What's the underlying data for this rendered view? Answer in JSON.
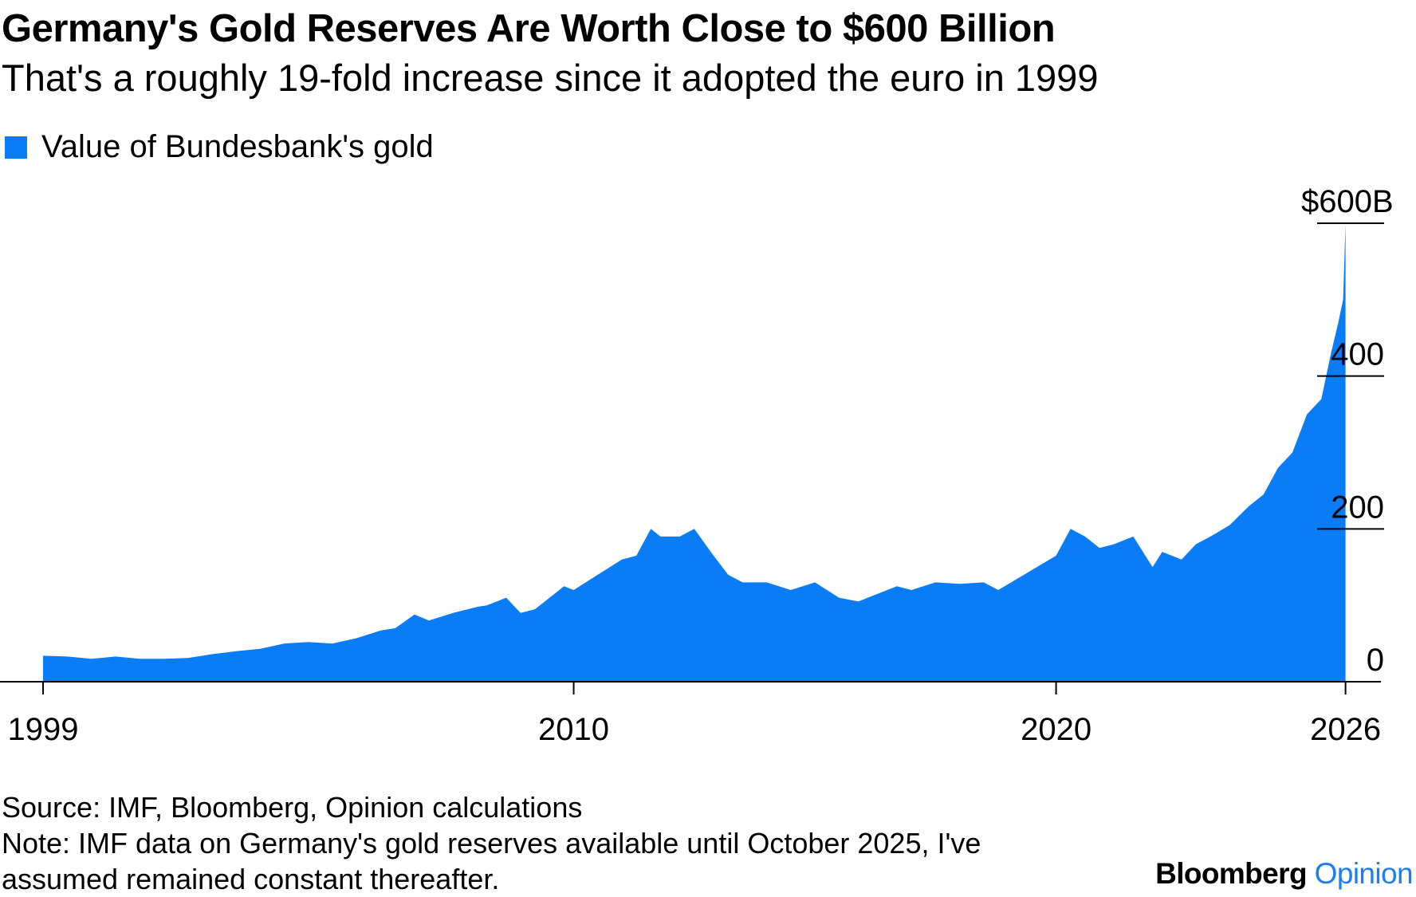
{
  "title": "Germany's Gold Reserves Are Worth Close to $600 Billion",
  "subtitle": "That's a roughly 19-fold increase since it adopted the euro in 1999",
  "legend_label": "Value of Bundesbank's gold",
  "footer": {
    "source": "Source: IMF, Bloomberg, Opinion calculations",
    "note_line1": "Note: IMF data on Germany's gold reserves available until October 2025, I've",
    "note_line2": "assumed remained constant thereafter."
  },
  "brand": {
    "name": "Bloomberg",
    "section": "Opinion"
  },
  "colors": {
    "area": "#0a7cf6",
    "axis": "#000000"
  },
  "chart_data": {
    "type": "area",
    "title": "Germany's Gold Reserves Are Worth Close to $600 Billion",
    "series_name": "Value of Bundesbank's gold",
    "ylabel": "$ billions",
    "ylim": [
      0,
      600
    ],
    "xlim": [
      1999.0,
      2026.8
    ],
    "y_ticks": [
      {
        "value": 600,
        "label": "$600B"
      },
      {
        "value": 400,
        "label": "400"
      },
      {
        "value": 200,
        "label": "200"
      },
      {
        "value": 0,
        "label": "0"
      }
    ],
    "x_ticks": [
      {
        "value": 1999.0,
        "label": "1999"
      },
      {
        "value": 2010.0,
        "label": "2010"
      },
      {
        "value": 2020.0,
        "label": "2020"
      },
      {
        "value": 2026.0,
        "label": "2026"
      }
    ],
    "x": [
      1999.0,
      1999.5,
      2000.0,
      2000.5,
      2001.0,
      2001.5,
      2002.0,
      2002.5,
      2003.0,
      2003.5,
      2004.0,
      2004.5,
      2005.0,
      2005.5,
      2006.0,
      2006.3,
      2006.7,
      2007.0,
      2007.5,
      2008.0,
      2008.2,
      2008.6,
      2008.9,
      2009.2,
      2009.5,
      2009.8,
      2010.0,
      2010.5,
      2011.0,
      2011.3,
      2011.6,
      2011.8,
      2012.2,
      2012.5,
      2012.9,
      2013.2,
      2013.5,
      2014.0,
      2014.5,
      2015.0,
      2015.5,
      2015.9,
      2016.3,
      2016.7,
      2017.0,
      2017.5,
      2018.0,
      2018.5,
      2018.8,
      2019.2,
      2019.6,
      2020.0,
      2020.3,
      2020.6,
      2020.9,
      2021.2,
      2021.6,
      2022.0,
      2022.2,
      2022.6,
      2022.9,
      2023.2,
      2023.6,
      2024.0,
      2024.3,
      2024.6,
      2024.9,
      2025.2,
      2025.5,
      2025.7,
      2025.85,
      2025.95,
      2026.0
    ],
    "values": [
      34,
      33,
      30,
      33,
      30,
      30,
      31,
      36,
      40,
      43,
      50,
      52,
      50,
      57,
      67,
      70,
      88,
      80,
      90,
      98,
      100,
      110,
      90,
      95,
      110,
      125,
      120,
      140,
      160,
      165,
      200,
      190,
      190,
      200,
      165,
      140,
      130,
      130,
      120,
      130,
      110,
      105,
      115,
      125,
      120,
      130,
      128,
      130,
      120,
      135,
      150,
      165,
      200,
      190,
      175,
      180,
      190,
      150,
      170,
      160,
      180,
      190,
      205,
      230,
      245,
      280,
      300,
      350,
      370,
      430,
      470,
      500,
      600
    ]
  }
}
